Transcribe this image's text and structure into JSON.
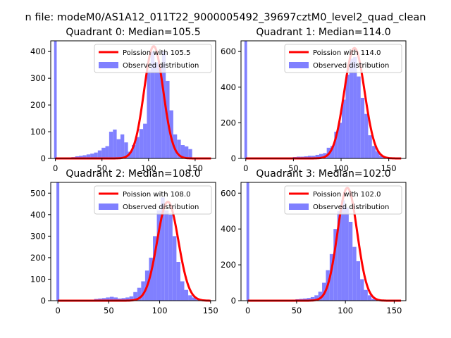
{
  "figure": {
    "suptitle": "n file: modeM0/AS1A12_011T22_9000005492_39697cztM0_level2_quad_clean"
  },
  "chart_data": [
    {
      "type": "bar",
      "title": "Quadrant 0: Median=105.5",
      "xlim": [
        -5,
        172
      ],
      "ylim": [
        0,
        440
      ],
      "xticks": [
        0,
        50,
        100,
        150
      ],
      "yticks": [
        0,
        100,
        200,
        300,
        400
      ],
      "legend": {
        "placement": "top-right",
        "entries": [
          "Poission with 105.5",
          "Observed distribution"
        ]
      },
      "spike": {
        "x": 0,
        "value": 440
      },
      "hist": {
        "x0": 1,
        "width": 4.05,
        "values": [
          2,
          3,
          3,
          4,
          5,
          8,
          10,
          12,
          15,
          18,
          22,
          30,
          40,
          46,
          100,
          108,
          72,
          90,
          60,
          25,
          50,
          80,
          110,
          130,
          330,
          400,
          360,
          350,
          400,
          290,
          180,
          90,
          70,
          50,
          45,
          35
        ]
      },
      "poisson": {
        "mean": 105.5,
        "peak": 420
      },
      "colors": {
        "hist": "#8080ff",
        "poisson": "#ff0000"
      }
    },
    {
      "type": "bar",
      "title": "Quadrant 1: Median=114.0",
      "xlim": [
        -5,
        168
      ],
      "ylim": [
        0,
        660
      ],
      "xticks": [
        0,
        50,
        100,
        150
      ],
      "yticks": [
        0,
        200,
        400,
        600
      ],
      "legend": {
        "placement": "top-right",
        "entries": [
          "Poission with 114.0",
          "Observed distribution"
        ]
      },
      "spike": {
        "x": 0,
        "value": 660
      },
      "hist": {
        "x0": 2,
        "width": 3.95,
        "values": [
          1,
          1,
          1,
          1,
          2,
          2,
          2,
          3,
          4,
          5,
          5,
          6,
          8,
          10,
          10,
          12,
          15,
          15,
          20,
          25,
          30,
          60,
          70,
          150,
          200,
          330,
          470,
          560,
          570,
          460,
          340,
          250,
          130,
          70,
          40,
          15,
          8
        ]
      },
      "poisson": {
        "mean": 114.0,
        "peak": 620
      },
      "colors": {
        "hist": "#8080ff",
        "poisson": "#ff0000"
      }
    },
    {
      "type": "bar",
      "title": "Quadrant 2: Median=108.0",
      "xlim": [
        -7,
        155
      ],
      "ylim": [
        0,
        550
      ],
      "xticks": [
        0,
        50,
        100,
        150
      ],
      "yticks": [
        0,
        100,
        200,
        300,
        400,
        500
      ],
      "legend": {
        "placement": "top-right",
        "entries": [
          "Poission with 108.0",
          "Observed distribution"
        ]
      },
      "spike": {
        "x": 0,
        "value": 550
      },
      "hist": {
        "x0": 1,
        "width": 3.85,
        "values": [
          1,
          1,
          2,
          2,
          2,
          3,
          3,
          4,
          5,
          8,
          10,
          12,
          15,
          18,
          15,
          10,
          12,
          15,
          20,
          40,
          60,
          90,
          140,
          200,
          300,
          420,
          480,
          420,
          400,
          300,
          180,
          90,
          50,
          25,
          15,
          8
        ]
      },
      "poisson": {
        "mean": 108.0,
        "peak": 460
      },
      "colors": {
        "hist": "#8080ff",
        "poisson": "#ff0000"
      }
    },
    {
      "type": "bar",
      "title": "Quadrant 3: Median=102.0",
      "xlim": [
        -7,
        162
      ],
      "ylim": [
        0,
        660
      ],
      "xticks": [
        0,
        50,
        100,
        150
      ],
      "yticks": [
        0,
        200,
        400,
        600
      ],
      "legend": {
        "placement": "top-right",
        "entries": [
          "Poission with 102.0",
          "Observed distribution"
        ]
      },
      "spike": {
        "x": 0,
        "value": 660
      },
      "hist": {
        "x0": 2,
        "width": 3.9,
        "values": [
          1,
          1,
          1,
          1,
          2,
          2,
          2,
          3,
          3,
          4,
          5,
          6,
          8,
          10,
          12,
          15,
          20,
          30,
          50,
          100,
          170,
          260,
          400,
          500,
          560,
          520,
          440,
          300,
          220,
          120,
          60,
          30,
          10,
          5
        ]
      },
      "poisson": {
        "mean": 102.0,
        "peak": 630
      },
      "colors": {
        "hist": "#8080ff",
        "poisson": "#ff0000"
      }
    }
  ]
}
